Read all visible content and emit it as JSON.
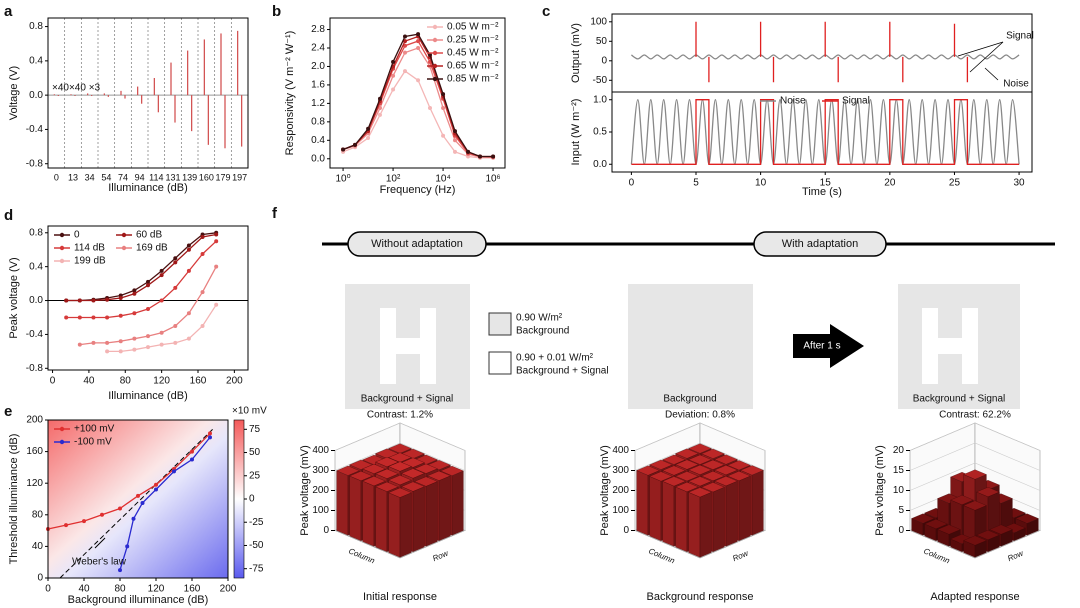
{
  "chart_data": [
    {
      "type": "spike",
      "label": "a",
      "categories": [
        "0",
        "13",
        "34",
        "54",
        "74",
        "94",
        "114",
        "131",
        "139",
        "160",
        "179",
        "197"
      ],
      "values": [
        0.01,
        0.01,
        0.02,
        0.02,
        0.05,
        0.1,
        0.2,
        0.38,
        0.52,
        0.65,
        0.72,
        0.75
      ],
      "troughs": [
        -0.01,
        -0.01,
        -0.01,
        -0.02,
        -0.04,
        -0.1,
        -0.2,
        -0.32,
        -0.42,
        -0.58,
        -0.62,
        -0.6
      ],
      "color": "#d04848",
      "ylim": [
        -0.85,
        0.9
      ],
      "yticks": [
        -0.8,
        -0.4,
        {
          "value": 0,
          "label": "0.0"
        },
        0.4,
        0.8
      ],
      "xlabel": "Illuminance (dB)",
      "ylabel": "Voltage (V)",
      "annotations": [
        "×40×40 ×3"
      ]
    },
    {
      "type": "line",
      "label": "b",
      "xscale": "log",
      "xlim": [
        0.3,
        3000000
      ],
      "xticks": [
        {
          "value": 1,
          "label": "10⁰"
        },
        {
          "value": 100,
          "label": "10²"
        },
        {
          "value": 10000,
          "label": "10⁴"
        },
        {
          "value": 1000000,
          "label": "10⁶"
        }
      ],
      "ylim": [
        -0.2,
        3.05
      ],
      "yticks": [
        {
          "value": 0,
          "label": "0.0"
        },
        0.4,
        0.8,
        1.2,
        1.6,
        {
          "value": 2,
          "label": "2.0"
        },
        2.4,
        2.8
      ],
      "xlabel": "Frequency (Hz)",
      "ylabel": "Responsivity (V m⁻² W⁻¹)",
      "markers": true,
      "legend": "upper right",
      "x": [
        1,
        3,
        10,
        30,
        100,
        300,
        1000,
        3000,
        10000,
        30000,
        100000,
        300000,
        1000000
      ],
      "series": [
        {
          "name": "0.05 W m⁻²",
          "color": "#f4b6b6",
          "values": [
            0.15,
            0.25,
            0.45,
            0.95,
            1.5,
            1.9,
            1.7,
            1.1,
            0.5,
            0.15,
            0.05,
            0.02,
            0.02
          ]
        },
        {
          "name": "0.25 W m⁻²",
          "color": "#ec8a8a",
          "values": [
            0.2,
            0.28,
            0.55,
            1.1,
            1.8,
            2.3,
            2.4,
            2.0,
            1.1,
            0.4,
            0.1,
            0.04,
            0.03
          ]
        },
        {
          "name": "0.45 W m⁻²",
          "color": "#dd4a4a",
          "values": [
            0.2,
            0.3,
            0.6,
            1.2,
            1.95,
            2.45,
            2.55,
            2.1,
            1.3,
            0.5,
            0.12,
            0.05,
            0.04
          ]
        },
        {
          "name": "0.65 W m⁻²",
          "color": "#b52020",
          "values": [
            0.2,
            0.3,
            0.6,
            1.25,
            2.0,
            2.55,
            2.65,
            2.2,
            1.35,
            0.55,
            0.15,
            0.05,
            0.05
          ]
        },
        {
          "name": "0.85 W m⁻²",
          "color": "#3a1010",
          "values": [
            0.2,
            0.3,
            0.65,
            1.3,
            2.1,
            2.65,
            2.7,
            2.25,
            1.4,
            0.6,
            0.15,
            0.05,
            0.05
          ]
        }
      ]
    },
    {
      "type": "line",
      "label": "c",
      "xlim": [
        -1.5,
        31
      ],
      "ylim": [
        -80,
        120
      ],
      "yticks": [
        -50,
        0,
        50,
        100
      ],
      "ylabel": "Output (mV)",
      "annotations": [
        "Signal",
        "Noise"
      ],
      "series": [
        {
          "color": "#888888",
          "smooth": true,
          "x": [
            0,
            0.5,
            1,
            1.5,
            2,
            2.5,
            3,
            3.5,
            4,
            4.5,
            5,
            5.5,
            6,
            6.5,
            7,
            7.5,
            8,
            8.5,
            9,
            9.5,
            10,
            10.5,
            11,
            11.5,
            12,
            12.5,
            13,
            13.5,
            14,
            14.5,
            15,
            15.5,
            16,
            16.5,
            17,
            17.5,
            18,
            18.5,
            19,
            19.5,
            20,
            20.5,
            21,
            21.5,
            22,
            22.5,
            23,
            23.5,
            24,
            24.5,
            25,
            25.5,
            26,
            26.5,
            27,
            27.5,
            28,
            28.5,
            29,
            29.5,
            30
          ],
          "values": [
            15,
            5,
            15,
            5,
            15,
            5,
            15,
            5,
            15,
            5,
            15,
            5,
            15,
            5,
            15,
            5,
            15,
            5,
            15,
            5,
            15,
            5,
            15,
            5,
            15,
            5,
            15,
            5,
            15,
            5,
            15,
            5,
            15,
            5,
            15,
            5,
            15,
            5,
            15,
            5,
            15,
            5,
            15,
            5,
            15,
            5,
            15,
            5,
            15,
            5,
            15,
            5,
            15,
            5,
            15,
            5,
            15,
            5,
            15,
            5,
            15
          ]
        },
        {
          "color": "#e02020",
          "x": [
            5,
            5,
            5,
            6,
            6,
            6,
            10,
            10,
            10,
            11,
            11,
            11,
            15,
            15,
            15,
            16,
            16,
            16,
            20,
            20,
            20,
            21,
            21,
            21,
            25,
            25,
            25,
            26,
            26,
            26
          ],
          "values": [
            10,
            100,
            null,
            10,
            -55,
            null,
            10,
            100,
            null,
            10,
            -55,
            null,
            10,
            100,
            null,
            10,
            -55,
            null,
            10,
            100,
            null,
            10,
            -55,
            null,
            10,
            95,
            null,
            10,
            -55,
            null
          ]
        }
      ]
    },
    {
      "type": "line",
      "xlim": [
        -1.5,
        31
      ],
      "xticks": [
        0,
        5,
        10,
        15,
        20,
        25,
        30
      ],
      "ylim": [
        -0.12,
        1.12
      ],
      "yticks": [
        {
          "value": 0,
          "label": "0.0"
        },
        0.5,
        {
          "value": 1,
          "label": "1.0"
        }
      ],
      "xlabel": "Time (s)",
      "ylabel": "Input (W m⁻²)",
      "legend": "upper center",
      "legend_columns": 2,
      "series": [
        {
          "name": "Noise",
          "color": "#888888",
          "smooth": true,
          "x": [
            0,
            0.5,
            1,
            1.5,
            2,
            2.5,
            3,
            3.5,
            4,
            4.5,
            5,
            5.5,
            6,
            6.5,
            7,
            7.5,
            8,
            8.5,
            9,
            9.5,
            10,
            10.5,
            11,
            11.5,
            12,
            12.5,
            13,
            13.5,
            14,
            14.5,
            15,
            15.5,
            16,
            16.5,
            17,
            17.5,
            18,
            18.5,
            19,
            19.5,
            20,
            20.5,
            21,
            21.5,
            22,
            22.5,
            23,
            23.5,
            24,
            24.5,
            25,
            25.5,
            26,
            26.5,
            27,
            27.5,
            28,
            28.5,
            29,
            29.5,
            30
          ],
          "values": [
            0,
            1,
            0,
            1,
            0,
            1,
            0,
            1,
            0,
            1,
            0,
            1,
            0,
            1,
            0,
            1,
            0,
            1,
            0,
            1,
            0,
            1,
            0,
            1,
            0,
            1,
            0,
            1,
            0,
            1,
            0,
            1,
            0,
            1,
            0,
            1,
            0,
            1,
            0,
            1,
            0,
            1,
            0,
            1,
            0,
            1,
            0,
            1,
            0,
            1,
            0,
            1,
            0,
            1,
            0,
            1,
            0,
            1,
            0,
            1,
            0
          ]
        },
        {
          "name": "Signal",
          "color": "#e02020",
          "x": [
            0,
            5,
            5,
            6,
            6,
            10,
            10,
            11,
            11,
            15,
            15,
            16,
            16,
            20,
            20,
            21,
            21,
            25,
            25,
            26,
            26,
            30
          ],
          "values": [
            0,
            0,
            1,
            1,
            0,
            0,
            1,
            1,
            0,
            0,
            1,
            1,
            0,
            0,
            1,
            1,
            0,
            0,
            1,
            1,
            0,
            0
          ]
        }
      ]
    },
    {
      "type": "line",
      "label": "d",
      "xlim": [
        -5,
        215
      ],
      "xticks": [
        0,
        40,
        80,
        120,
        160,
        200
      ],
      "ylim": [
        -0.82,
        0.88
      ],
      "yticks": [
        -0.8,
        -0.4,
        {
          "value": 0,
          "label": "0.0"
        },
        0.4,
        0.8
      ],
      "zero_line": true,
      "xlabel": "Illuminance (dB)",
      "ylabel": "Peak voltage (V)",
      "markers": true,
      "legend": "upper left",
      "legend_columns": 2,
      "x": [
        15,
        30,
        45,
        60,
        75,
        90,
        105,
        120,
        135,
        150,
        165,
        180
      ],
      "series": [
        {
          "name": "0",
          "color": "#4a1010",
          "values": [
            0,
            0,
            0.01,
            0.03,
            0.06,
            0.12,
            0.22,
            0.35,
            0.5,
            0.65,
            0.78,
            0.8
          ]
        },
        {
          "name": "60  dB",
          "color": "#a01818",
          "values": [
            0,
            0,
            0,
            0.01,
            0.03,
            0.08,
            0.18,
            0.3,
            0.45,
            0.6,
            0.75,
            0.78
          ]
        },
        {
          "name": "114 dB",
          "color": "#d63a3a",
          "values": [
            -0.2,
            -0.2,
            -0.2,
            -0.2,
            -0.18,
            -0.15,
            -0.1,
            0,
            0.15,
            0.35,
            0.55,
            0.7
          ]
        },
        {
          "name": "169 dB",
          "color": "#e88080",
          "values": [
            null,
            -0.52,
            -0.5,
            -0.5,
            -0.48,
            -0.45,
            -0.42,
            -0.38,
            -0.3,
            -0.15,
            0.1,
            0.4
          ]
        },
        {
          "name": "199 dB",
          "color": "#f3b3b3",
          "values": [
            null,
            null,
            null,
            -0.6,
            -0.6,
            -0.58,
            -0.55,
            -0.52,
            -0.5,
            -0.45,
            -0.3,
            -0.05
          ]
        }
      ]
    },
    {
      "type": "line",
      "label": "e",
      "heatmap": true,
      "xlim": [
        0,
        200
      ],
      "xticks": [
        0,
        40,
        80,
        120,
        160,
        200
      ],
      "ylim": [
        0,
        200
      ],
      "yticks": [
        0,
        40,
        80,
        120,
        160,
        200
      ],
      "xlabel": "Background illuminance (dB)",
      "ylabel": "Threshold illuminance (dB)",
      "markers": true,
      "legend": "upper left",
      "clim": [
        -85,
        85
      ],
      "cticks": [
        75,
        50,
        25,
        0,
        -25,
        -50,
        -75
      ],
      "cunit": "×10 mV",
      "annotations": [
        "Weber's law"
      ],
      "series": [
        {
          "name": "+100 mV",
          "color": "#e03030",
          "x": [
            0,
            20,
            40,
            60,
            80,
            100,
            120,
            140,
            160,
            180
          ],
          "values": [
            62,
            67,
            72,
            80,
            88,
            104,
            118,
            138,
            160,
            183
          ]
        },
        {
          "name": "-100 mV",
          "color": "#2a2ad0",
          "x": [
            80,
            88,
            95,
            105,
            120,
            140,
            160,
            180
          ],
          "values": [
            10,
            40,
            75,
            95,
            112,
            135,
            150,
            178
          ]
        }
      ]
    },
    {
      "type": "bar3d",
      "zlim": [
        0,
        400
      ],
      "zticks": [
        0,
        100,
        200,
        300,
        400
      ],
      "ylabel": "Peak voltage (mV)",
      "xlabel": "Column",
      "rowlabel": "Row",
      "annotation": "Contrast: 1.2%",
      "caption": "Initial response",
      "values": [
        [
          300,
          302,
          298,
          301,
          299
        ],
        [
          301,
          310,
          315,
          308,
          300
        ],
        [
          299,
          312,
          320,
          311,
          302
        ],
        [
          300,
          309,
          313,
          307,
          301
        ],
        [
          298,
          301,
          300,
          302,
          299
        ]
      ]
    },
    {
      "type": "bar3d",
      "zlim": [
        0,
        400
      ],
      "zticks": [
        0,
        100,
        200,
        300,
        400
      ],
      "ylabel": "Peak voltage (mV)",
      "xlabel": "Column",
      "rowlabel": "Row",
      "annotation": "Deviation: 0.8%",
      "caption": "Background response",
      "values": [
        [
          300,
          302,
          299,
          301,
          300
        ],
        [
          301,
          299,
          302,
          300,
          298
        ],
        [
          300,
          301,
          303,
          299,
          301
        ],
        [
          299,
          302,
          300,
          301,
          300
        ],
        [
          301,
          300,
          302,
          299,
          301
        ]
      ]
    },
    {
      "type": "bar3d",
      "zlim": [
        0,
        20
      ],
      "zticks": [
        0,
        5,
        10,
        15,
        20
      ],
      "ylabel": "Peak voltage (mV)",
      "xlabel": "Column",
      "rowlabel": "Row",
      "annotation": "Contrast: 62.2%",
      "caption": "Adapted response",
      "values": [
        [
          3,
          3,
          2,
          3,
          3
        ],
        [
          3,
          9,
          12,
          8,
          3
        ],
        [
          2,
          10,
          14,
          9,
          3
        ],
        [
          3,
          8,
          11,
          9,
          2
        ],
        [
          3,
          2,
          3,
          3,
          3
        ]
      ]
    }
  ],
  "diagram": {
    "label": "f",
    "stages": [
      "Without adaptation",
      "With adaptation"
    ],
    "images": [
      "Background + Signal",
      "Background",
      "Background + Signal"
    ],
    "legend": [
      {
        "value": "0.90 W/m²",
        "label": "Background"
      },
      {
        "value": "0.90 + 0.01 W/m²",
        "label": "Background + Signal"
      }
    ],
    "arrow": "After 1 s"
  }
}
